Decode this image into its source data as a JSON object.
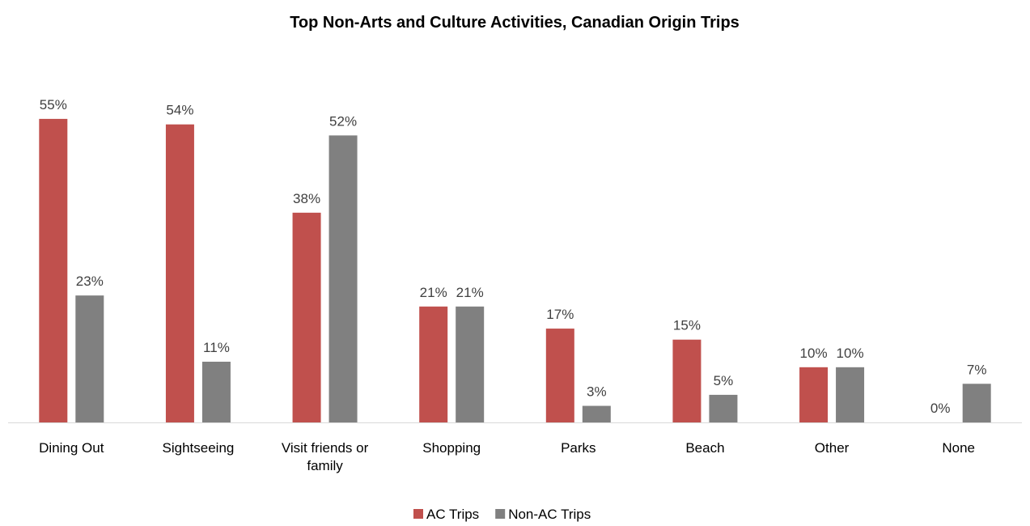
{
  "chart_data": {
    "type": "bar",
    "title": "Top Non-Arts and Culture Activities, Canadian Origin Trips",
    "categories": [
      "Dining Out",
      "Sightseeing",
      "Visit friends or family",
      "Shopping",
      "Parks",
      "Beach",
      "Other",
      "None"
    ],
    "series": [
      {
        "name": "AC Trips",
        "color": "#c0504d",
        "values": [
          55,
          54,
          38,
          21,
          17,
          15,
          10,
          0
        ],
        "value_labels": [
          "55%",
          "54%",
          "38%",
          "21%",
          "17%",
          "15%",
          "10%",
          "0%"
        ]
      },
      {
        "name": "Non-AC Trips",
        "color": "#808080",
        "values": [
          23,
          11,
          52,
          21,
          3,
          5,
          10,
          7
        ],
        "value_labels": [
          "23%",
          "11%",
          "52%",
          "21%",
          "3%",
          "5%",
          "10%",
          "7%"
        ]
      }
    ],
    "legend": "bottom"
  }
}
